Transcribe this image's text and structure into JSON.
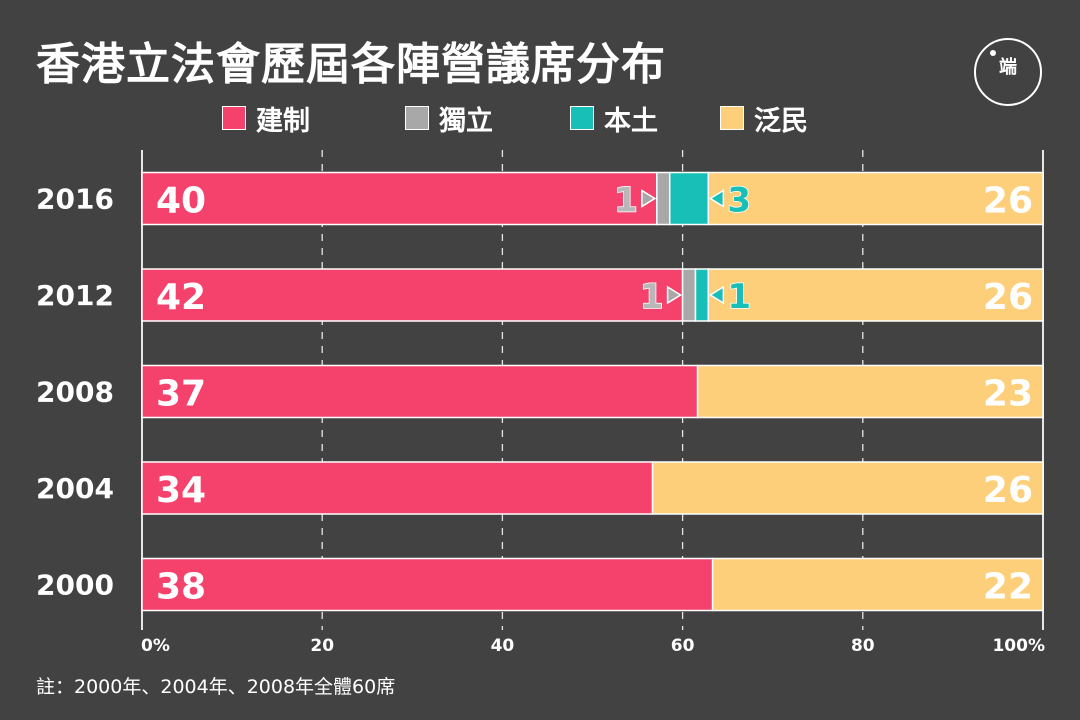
{
  "title": "香港立法會歷屆各陣營議席分布",
  "logo": {
    "text": "端"
  },
  "legend": [
    {
      "label": "建制",
      "color": "#f5426c"
    },
    {
      "label": "獨立",
      "color": "#a8a8a8"
    },
    {
      "label": "本土",
      "color": "#17bfb7"
    },
    {
      "label": "泛民",
      "color": "#fdcf7a"
    }
  ],
  "note": "註：2000年、2004年、2008年全體60席",
  "chart_data": {
    "type": "bar",
    "orientation": "horizontal",
    "stacked": true,
    "normalized": true,
    "categories": [
      "2016",
      "2012",
      "2008",
      "2004",
      "2000"
    ],
    "series": [
      {
        "name": "建制",
        "color": "#f5426c",
        "values": [
          40,
          42,
          37,
          34,
          38
        ]
      },
      {
        "name": "獨立",
        "color": "#a8a8a8",
        "values": [
          1,
          1,
          0,
          0,
          0
        ]
      },
      {
        "name": "本土",
        "color": "#17bfb7",
        "values": [
          3,
          1,
          0,
          0,
          0
        ]
      },
      {
        "name": "泛民",
        "color": "#fdcf7a",
        "values": [
          26,
          26,
          23,
          26,
          22
        ]
      }
    ],
    "xticks": [
      0,
      20,
      40,
      60,
      80,
      100
    ],
    "xtick_labels": [
      "0%",
      "20",
      "40",
      "60",
      "80",
      "100%"
    ],
    "xlim": [
      0,
      100
    ],
    "grid": "vertical-dashed"
  }
}
